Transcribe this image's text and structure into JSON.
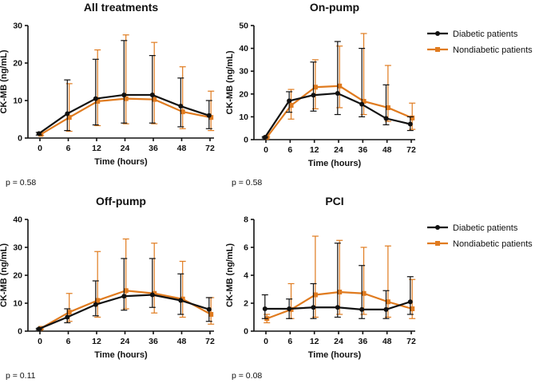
{
  "colors": {
    "diabetic": "#111111",
    "nondiabetic": "#e07b1f"
  },
  "legend": {
    "diabetic": "Diabetic patients",
    "nondiabetic": "Nondiabetic patients"
  },
  "chart_data": [
    {
      "type": "line",
      "title": "All treatments",
      "xlabel": "Time (hours)",
      "ylabel": "CK-MB (ng/mL)",
      "categories": [
        "0",
        "6",
        "12",
        "24",
        "36",
        "48",
        "72"
      ],
      "ylim": [
        0,
        30
      ],
      "yticks": [
        0,
        10,
        20,
        30
      ],
      "p_value": "p = 0.58",
      "show_legend": false,
      "series": [
        {
          "name": "Diabetic patients",
          "key": "diabetic",
          "values": [
            1.2,
            6.5,
            10.5,
            11.5,
            11.5,
            8.5,
            6.0
          ],
          "upper": [
            1.5,
            15.5,
            21.0,
            26.0,
            22.0,
            16.0,
            10.0
          ],
          "lower": [
            0.8,
            2.0,
            3.5,
            4.0,
            4.0,
            3.0,
            2.5
          ]
        },
        {
          "name": "Nondiabetic patients",
          "key": "nondiabetic",
          "values": [
            1.0,
            5.5,
            9.8,
            10.5,
            10.3,
            7.0,
            5.5
          ],
          "upper": [
            1.3,
            14.5,
            23.5,
            27.5,
            25.5,
            19.0,
            12.5
          ],
          "lower": [
            0.7,
            1.8,
            3.3,
            3.8,
            3.8,
            2.5,
            2.0
          ]
        }
      ]
    },
    {
      "type": "line",
      "title": "On-pump",
      "xlabel": "Time (hours)",
      "ylabel": "CK-MB (ng/mL)",
      "categories": [
        "0",
        "6",
        "12",
        "24",
        "36",
        "48",
        "72"
      ],
      "ylim": [
        0,
        50
      ],
      "yticks": [
        0,
        10,
        20,
        30,
        40,
        50
      ],
      "p_value": "p = 0.58",
      "show_legend": true,
      "series": [
        {
          "name": "Diabetic patients",
          "key": "diabetic",
          "values": [
            1.0,
            17.0,
            19.5,
            20.3,
            15.5,
            9.3,
            6.8
          ],
          "upper": [
            1.3,
            21.0,
            34.0,
            43.0,
            40.0,
            24.0,
            10.0
          ],
          "lower": [
            0.7,
            12.0,
            12.5,
            11.0,
            10.0,
            6.5,
            4.0
          ]
        },
        {
          "name": "Nondiabetic patients",
          "key": "nondiabetic",
          "values": [
            1.0,
            15.0,
            23.0,
            23.5,
            16.8,
            14.0,
            9.5
          ],
          "upper": [
            1.3,
            22.0,
            35.0,
            41.0,
            46.5,
            32.5,
            16.0
          ],
          "lower": [
            0.7,
            9.0,
            13.5,
            14.0,
            11.0,
            8.0,
            4.5
          ]
        }
      ]
    },
    {
      "type": "line",
      "title": "Off-pump",
      "xlabel": "Time (hours)",
      "ylabel": "CK-MB (ng/mL)",
      "categories": [
        "0",
        "6",
        "12",
        "24",
        "36",
        "48",
        "72"
      ],
      "ylim": [
        0,
        40
      ],
      "yticks": [
        0,
        10,
        20,
        30,
        40
      ],
      "p_value": "p = 0.11",
      "show_legend": false,
      "series": [
        {
          "name": "Diabetic patients",
          "key": "diabetic",
          "values": [
            0.8,
            5.0,
            9.5,
            12.5,
            13.0,
            11.0,
            7.8
          ],
          "upper": [
            1.0,
            8.0,
            18.0,
            26.0,
            26.0,
            20.5,
            12.0
          ],
          "lower": [
            0.5,
            3.0,
            5.5,
            7.5,
            8.5,
            6.0,
            3.5
          ]
        },
        {
          "name": "Nondiabetic patients",
          "key": "nondiabetic",
          "values": [
            1.0,
            6.8,
            11.0,
            14.5,
            13.5,
            11.5,
            6.0
          ],
          "upper": [
            1.3,
            13.5,
            28.5,
            33.0,
            31.5,
            25.0,
            12.0
          ],
          "lower": [
            0.7,
            3.5,
            5.0,
            8.0,
            6.5,
            5.0,
            2.5
          ]
        }
      ]
    },
    {
      "type": "line",
      "title": "PCI",
      "xlabel": "Time (hours)",
      "ylabel": "CK-MB (ng/mL)",
      "categories": [
        "0",
        "6",
        "12",
        "24",
        "36",
        "48",
        "72"
      ],
      "ylim": [
        0,
        8
      ],
      "yticks": [
        0,
        2,
        4,
        6,
        8
      ],
      "p_value": "p = 0.08",
      "show_legend": true,
      "series": [
        {
          "name": "Diabetic patients",
          "key": "diabetic",
          "values": [
            1.6,
            1.6,
            1.7,
            1.7,
            1.55,
            1.55,
            2.1
          ],
          "upper": [
            2.6,
            2.3,
            3.4,
            6.3,
            4.7,
            2.9,
            3.9
          ],
          "lower": [
            0.9,
            0.9,
            0.9,
            1.0,
            0.9,
            0.9,
            1.2
          ]
        },
        {
          "name": "Nondiabetic patients",
          "key": "nondiabetic",
          "values": [
            0.9,
            1.55,
            2.6,
            2.8,
            2.7,
            2.1,
            1.6
          ],
          "upper": [
            1.2,
            3.4,
            6.8,
            6.5,
            6.0,
            6.1,
            3.7
          ],
          "lower": [
            0.6,
            0.9,
            1.0,
            1.2,
            1.2,
            1.0,
            0.9
          ]
        }
      ]
    }
  ]
}
